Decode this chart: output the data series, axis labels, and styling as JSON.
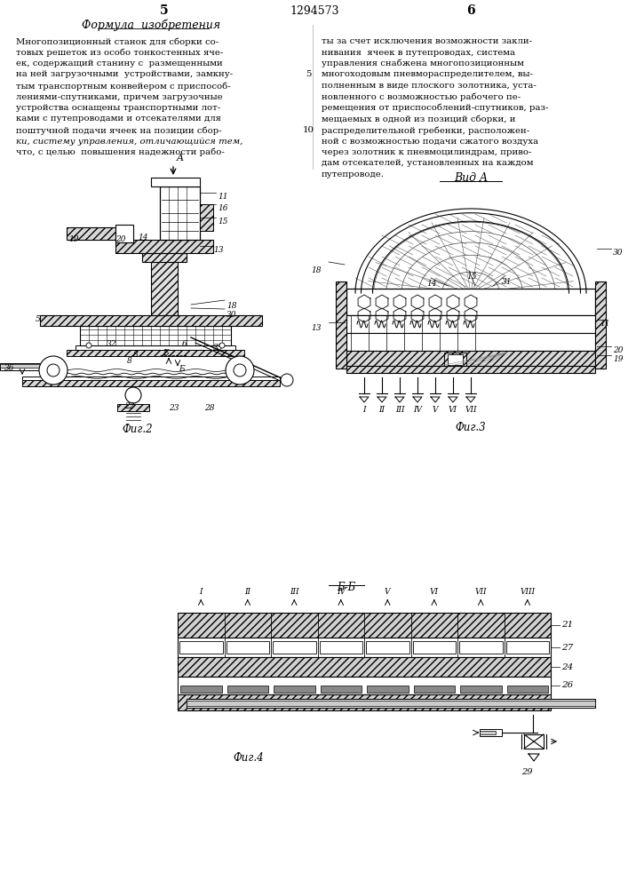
{
  "page_number_left": "5",
  "page_number_right": "6",
  "patent_number": "1294573",
  "title_formula": "Формула  изобретения",
  "fig2_label": "Фиг.2",
  "fig3_label": "Фиг.3",
  "fig4_label": "Фиг.4",
  "vida_label": "Вид A",
  "bb_label": "Б-Б",
  "background_color": "#ffffff",
  "line_color": "#000000",
  "text_color": "#000000",
  "left_text": [
    "Многопозиционный станок для сборки со-",
    "товых решеток из особо тонкостенных яче-",
    "ек, содержащий станину с  размещенными",
    "на ней загрузочными  устройствами, замкну-",
    "тым транспортным конвейером с приспособ-",
    "лениями-спутниками, причем загрузочные",
    "устройства оснащены транспортными лот-",
    "ками с путепроводами и отсекателями для",
    "поштучной подачи ячеек на позиции сбор-",
    "ки, систему управления, отличающийся тем,",
    "что, с целью  повышения надежности рабо-"
  ],
  "right_text": [
    "ты за счет исключения возможности закли-",
    "нивания  ячеек в путепроводах, система",
    "управления снабжена многопозиционным",
    "многоходовым пневмораспределителем, вы-",
    "полненным в виде плоского золотника, уста-",
    "новленного с возможностью рабочего пе-",
    "ремещения от приспособлений-спутников, раз-",
    "мещаемых в одной из позиций сборки, и",
    "распределительной гребенки, расположен-",
    "ной с возможностью подачи сжатого воздуха",
    "через золотник к пневмоцилиндрам, приво-",
    "дам отсекателей, установленных на каждом",
    "путепроводе."
  ]
}
